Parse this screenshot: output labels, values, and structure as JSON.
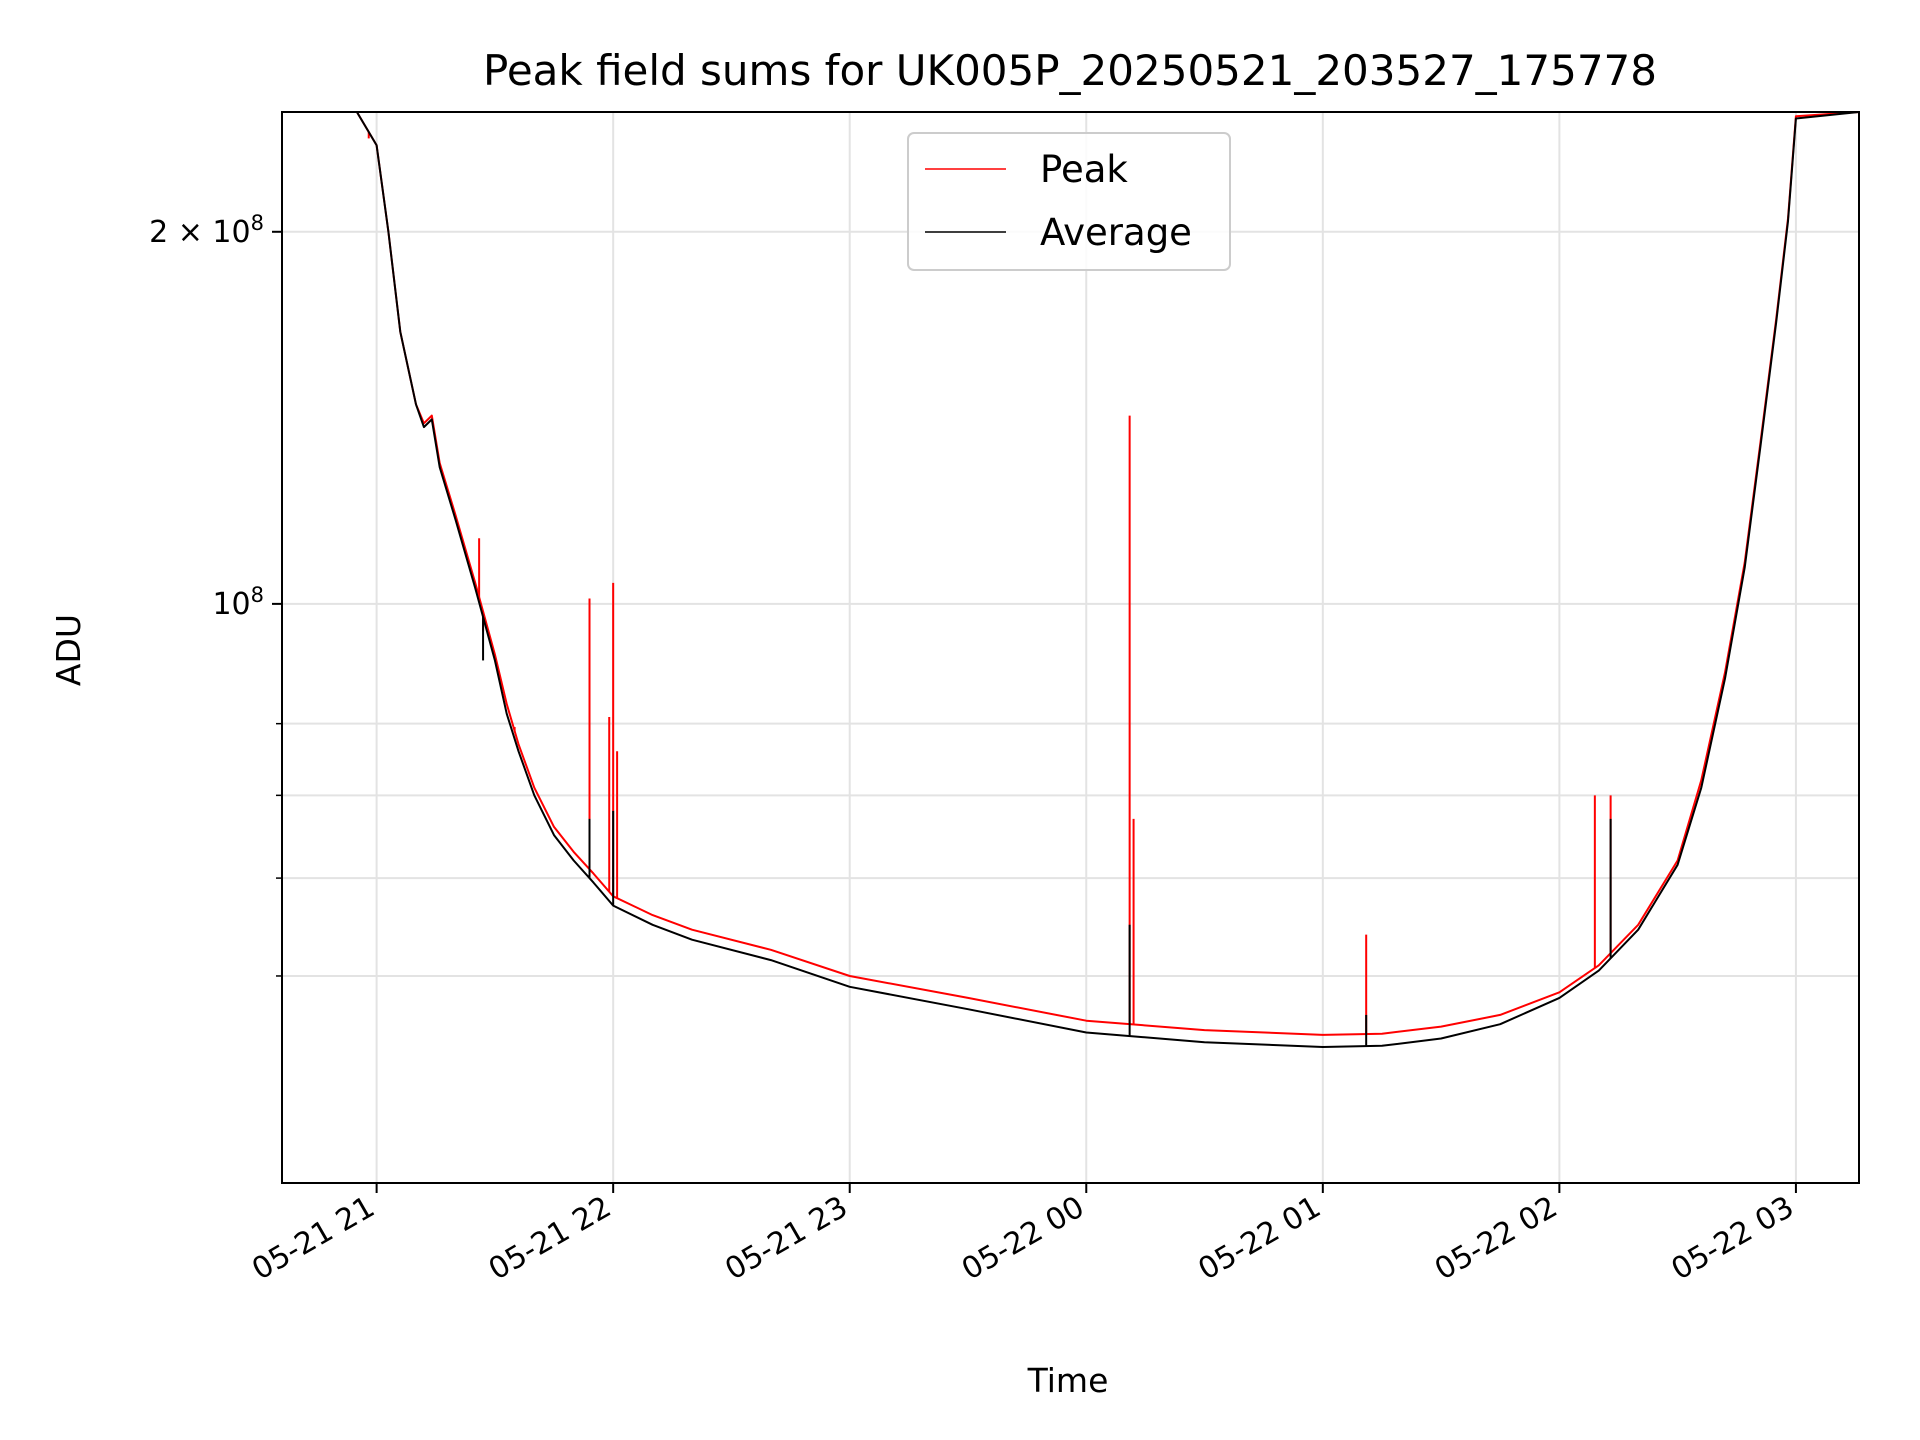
{
  "chart_data": {
    "type": "line",
    "title": "Peak field sums for UK005P_20250521_203527_175778",
    "xlabel": "Time",
    "ylabel": "ADU",
    "y_scale": "log",
    "ylim": [
      34000000,
      250000000
    ],
    "xlim": [
      "2025-05-21 20:36",
      "2025-05-22 03:16"
    ],
    "grid": true,
    "legend_position": "top-center",
    "x_ticks": [
      "2025-05-21 21:00",
      "2025-05-21 22:00",
      "2025-05-21 23:00",
      "2025-05-22 00:00",
      "2025-05-22 01:00",
      "2025-05-22 02:00",
      "2025-05-22 03:00"
    ],
    "x_tick_labels": [
      "05-21 21",
      "05-21 22",
      "05-21 23",
      "05-22 00",
      "05-22 01",
      "05-22 02",
      "05-22 03"
    ],
    "y_ticks": [
      {
        "value": 200000000,
        "label_base": "2 × 10",
        "label_exp": "8"
      },
      {
        "value": 100000000,
        "label_base": "10",
        "label_exp": "8"
      }
    ],
    "y_minor_ticks": [
      50000000,
      60000000,
      70000000,
      80000000
    ],
    "x": [
      "2025-05-21 20:36",
      "2025-05-21 20:55",
      "2025-05-21 21:00",
      "2025-05-21 21:03",
      "2025-05-21 21:06",
      "2025-05-21 21:10",
      "2025-05-21 21:12",
      "2025-05-21 21:14",
      "2025-05-21 21:16",
      "2025-05-21 21:20",
      "2025-05-21 21:25",
      "2025-05-21 21:30",
      "2025-05-21 21:33",
      "2025-05-21 21:36",
      "2025-05-21 21:40",
      "2025-05-21 21:45",
      "2025-05-21 21:50",
      "2025-05-21 21:55",
      "2025-05-21 22:00",
      "2025-05-21 22:10",
      "2025-05-21 22:20",
      "2025-05-21 22:40",
      "2025-05-21 23:00",
      "2025-05-21 23:30",
      "2025-05-22 00:00",
      "2025-05-22 00:30",
      "2025-05-22 01:00",
      "2025-05-22 01:15",
      "2025-05-22 01:30",
      "2025-05-22 01:45",
      "2025-05-22 02:00",
      "2025-05-22 02:10",
      "2025-05-22 02:20",
      "2025-05-22 02:30",
      "2025-05-22 02:36",
      "2025-05-22 02:42",
      "2025-05-22 02:47",
      "2025-05-22 02:51",
      "2025-05-22 02:55",
      "2025-05-22 02:58",
      "2025-05-22 03:00",
      "2025-05-22 03:16"
    ],
    "series": [
      {
        "name": "Peak",
        "color": "#ff0000",
        "values": [
          250000000,
          250000000,
          235000000,
          200000000,
          166000000,
          145000000,
          140000000,
          142000000,
          130000000,
          118000000,
          104000000,
          91000000,
          83000000,
          77000000,
          71000000,
          66000000,
          63000000,
          60500000,
          58000000,
          56000000,
          54500000,
          52500000,
          50000000,
          48000000,
          46000000,
          45200000,
          44800000,
          44900000,
          45500000,
          46500000,
          48500000,
          51000000,
          55000000,
          62000000,
          72000000,
          88000000,
          108000000,
          135000000,
          170000000,
          205000000,
          248000000,
          250000000
        ],
        "spikes": [
          {
            "x": "2025-05-21 20:58",
            "y": 238000000
          },
          {
            "x": "2025-05-21 21:26",
            "y": 113000000
          },
          {
            "x": "2025-05-21 21:27",
            "y": 95000000
          },
          {
            "x": "2025-05-21 21:35",
            "y": 79500000
          },
          {
            "x": "2025-05-21 21:54",
            "y": 101000000
          },
          {
            "x": "2025-05-21 21:59",
            "y": 81000000
          },
          {
            "x": "2025-05-21 22:00",
            "y": 104000000
          },
          {
            "x": "2025-05-21 22:01",
            "y": 76000000
          },
          {
            "x": "2025-05-22 00:11",
            "y": 142000000
          },
          {
            "x": "2025-05-22 00:12",
            "y": 67000000
          },
          {
            "x": "2025-05-22 01:11",
            "y": 54000000
          },
          {
            "x": "2025-05-22 02:09",
            "y": 70000000
          },
          {
            "x": "2025-05-22 02:13",
            "y": 70000000
          }
        ]
      },
      {
        "name": "Average",
        "color": "#000000",
        "values": [
          250000000,
          250000000,
          235000000,
          200000000,
          166000000,
          145000000,
          139000000,
          141000000,
          129000000,
          117000000,
          103000000,
          90000000,
          81500000,
          76000000,
          70000000,
          65000000,
          62000000,
          59500000,
          57000000,
          55000000,
          53500000,
          51500000,
          49000000,
          47000000,
          45000000,
          44200000,
          43800000,
          43900000,
          44500000,
          45700000,
          48000000,
          50500000,
          54500000,
          61500000,
          71000000,
          87000000,
          107000000,
          134000000,
          169000000,
          204000000,
          247000000,
          250000000
        ],
        "spikes": [
          {
            "x": "2025-05-21 21:27",
            "y": 90000000
          },
          {
            "x": "2025-05-21 21:54",
            "y": 67000000
          },
          {
            "x": "2025-05-21 22:00",
            "y": 68000000
          },
          {
            "x": "2025-05-22 00:11",
            "y": 55000000
          },
          {
            "x": "2025-05-22 01:11",
            "y": 46500000
          },
          {
            "x": "2025-05-22 02:13",
            "y": 67000000
          }
        ]
      }
    ]
  }
}
